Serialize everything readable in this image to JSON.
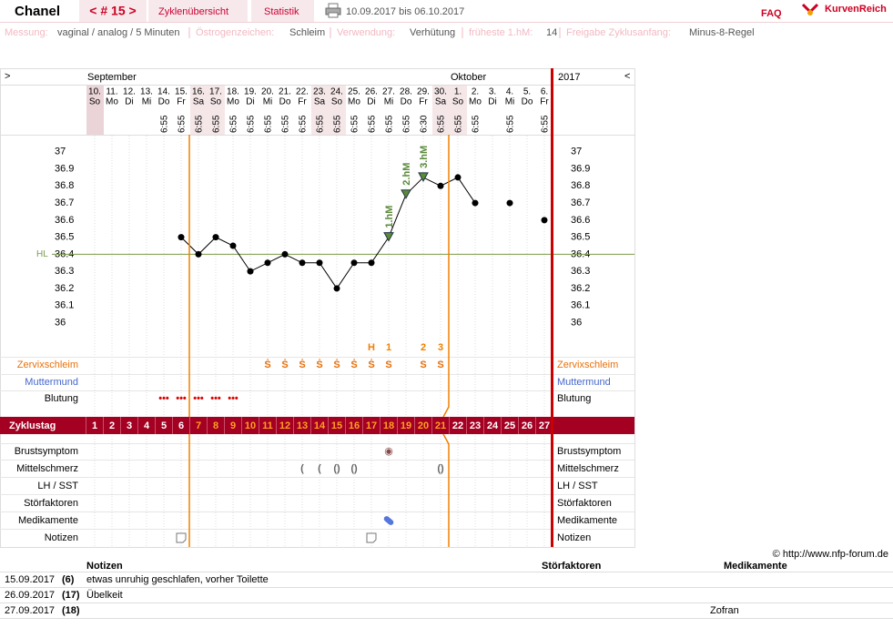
{
  "header": {
    "name": "Chanel",
    "cycle_nav": "< # 15 >",
    "tabs": [
      "Zyklenübersicht",
      "Statistik"
    ],
    "date_range": "10.09.2017 bis 06.10.2017",
    "faq": "FAQ",
    "logo": "KurvenReich"
  },
  "settings": [
    {
      "label": "Messung:",
      "value": "vaginal / analog / 5 Minuten"
    },
    {
      "label": "Östrogenzeichen:",
      "value": "Schleim"
    },
    {
      "label": "Verwendung:",
      "value": "Verhütung"
    },
    {
      "label": "früheste 1.hM:",
      "value": "14"
    },
    {
      "label": "Freigabe Zyklusanfang:",
      "value": "Minus-8-Regel"
    }
  ],
  "chart_data": {
    "type": "line",
    "nav_left": ">",
    "nav_right": "<",
    "months": [
      "September",
      "Oktober"
    ],
    "month_starts": [
      "10.",
      "1."
    ],
    "year": "2017",
    "categories": [
      "10.",
      "11.",
      "12.",
      "13.",
      "14.",
      "15.",
      "16.",
      "17.",
      "18.",
      "19.",
      "20.",
      "21.",
      "22.",
      "23.",
      "24.",
      "25.",
      "26.",
      "27.",
      "28.",
      "29.",
      "30.",
      "1.",
      "2.",
      "3.",
      "4.",
      "5.",
      "6."
    ],
    "weekdays": [
      "So",
      "Mo",
      "Di",
      "Mi",
      "Do",
      "Fr",
      "Sa",
      "So",
      "Mo",
      "Di",
      "Mi",
      "Do",
      "Fr",
      "Sa",
      "So",
      "Mo",
      "Di",
      "Mi",
      "Do",
      "Fr",
      "Sa",
      "So",
      "Mo",
      "Di",
      "Mi",
      "Do",
      "Fr"
    ],
    "times": [
      null,
      null,
      null,
      null,
      "6:55",
      "6:55",
      "6:55",
      "6:55",
      "6:55",
      "6:55",
      "6:55",
      "6:55",
      "6:55",
      "6:55",
      "6:55",
      "6:55",
      "6:55",
      "6:55",
      "6:55",
      "6:30",
      "6:55",
      "6:55",
      "6:55",
      null,
      "6:55",
      null,
      "6:55"
    ],
    "values": [
      null,
      null,
      null,
      null,
      null,
      36.5,
      36.4,
      36.5,
      36.45,
      36.3,
      36.35,
      36.4,
      36.35,
      36.35,
      36.2,
      36.35,
      36.35,
      36.5,
      36.75,
      36.85,
      36.8,
      36.85,
      36.7,
      null,
      36.7,
      null,
      36.6
    ],
    "color": "#000000",
    "ylim": [
      35.8,
      37.1
    ],
    "yticks": [
      36,
      36.1,
      36.2,
      36.3,
      36.4,
      36.5,
      36.6,
      36.7,
      36.8,
      36.9,
      37
    ],
    "coverline": {
      "label": "HL",
      "value": 36.4,
      "color": "#7a9a4a"
    },
    "annotations": [
      {
        "day": "27.",
        "label": "1.hM"
      },
      {
        "day": "28.",
        "label": "2.hM"
      },
      {
        "day": "29.",
        "label": "3.hM"
      }
    ],
    "annotation_color": "#5a8a3a",
    "peak_marks": [
      {
        "day": "26.",
        "text": "H"
      },
      {
        "day": "27.",
        "text": "1"
      },
      {
        "day": "29.",
        "text": "2"
      },
      {
        "day": "30.",
        "text": "3"
      }
    ],
    "rows_top": [
      {
        "label": "Zervixschleim",
        "color": "#e8700a",
        "marks": [
          {
            "day": "20.",
            "text": "Ṡ"
          },
          {
            "day": "21.",
            "text": "Ṡ"
          },
          {
            "day": "22.",
            "text": "Ṡ"
          },
          {
            "day": "23.",
            "text": "Ṡ"
          },
          {
            "day": "24.",
            "text": "Ṡ"
          },
          {
            "day": "25.",
            "text": "Ṡ"
          },
          {
            "day": "26.",
            "text": "Ṡ"
          },
          {
            "day": "27.",
            "text": "S"
          },
          {
            "day": "29.",
            "text": "S"
          },
          {
            "day": "30.",
            "text": "S"
          }
        ]
      },
      {
        "label": "Muttermund",
        "color": "#4466cc"
      },
      {
        "label": "Blutung",
        "color": "#000000",
        "mark_color": "#dd0000",
        "marks": [
          {
            "day": "14.",
            "text": "•••"
          },
          {
            "day": "15.",
            "text": "•••"
          },
          {
            "day": "16.",
            "text": "•••"
          },
          {
            "day": "17.",
            "text": "•••"
          },
          {
            "day": "18.",
            "text": "•••"
          }
        ]
      }
    ],
    "cycle_row": {
      "label": "Zyklustag",
      "days": [
        1,
        2,
        3,
        4,
        5,
        6,
        7,
        8,
        9,
        10,
        11,
        12,
        13,
        14,
        15,
        16,
        17,
        18,
        19,
        20,
        21,
        22,
        23,
        24,
        25,
        26,
        27
      ]
    },
    "rows_bottom": [
      {
        "label": "Brustsymptom",
        "mark_color": "#8b4a4a",
        "marks": [
          {
            "day": "27.",
            "text": "◉"
          }
        ]
      },
      {
        "label": "Mittelschmerz",
        "mark_color": "#666666",
        "marks": [
          {
            "day": "22.",
            "text": "("
          },
          {
            "day": "23.",
            "text": "("
          },
          {
            "day": "24.",
            "text": "()"
          },
          {
            "day": "25.",
            "text": "()"
          },
          {
            "day": "30.",
            "text": "()"
          }
        ]
      },
      {
        "label": "LH / SST"
      },
      {
        "label": "Störfaktoren"
      },
      {
        "label": "Medikamente"
      },
      {
        "label": "Notizen"
      }
    ]
  },
  "credit": "© http://www.nfp-forum.de",
  "notes": {
    "columns": [
      "Notizen",
      "Störfaktoren",
      "Medikamente"
    ],
    "rows": [
      [
        "15.09.2017",
        "(6)",
        "etwas unruhig geschlafen, vorher Toilette",
        null
      ],
      [
        "26.09.2017",
        "(17)",
        "Übelkeit",
        null
      ],
      [
        "27.09.2017",
        "(18)",
        null,
        "Zofran"
      ]
    ]
  }
}
